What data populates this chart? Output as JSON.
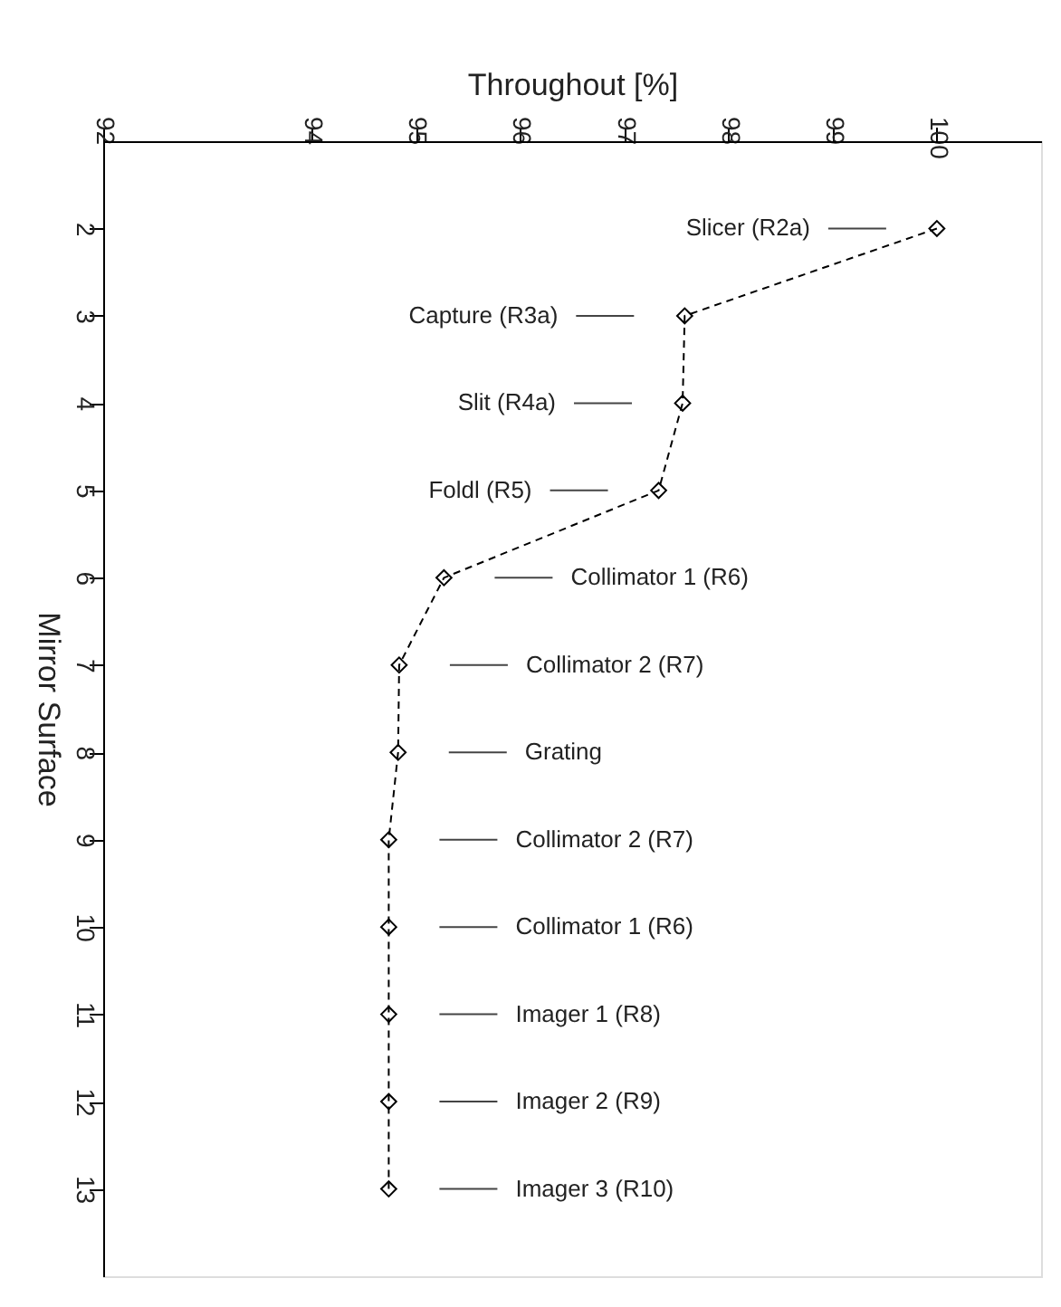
{
  "chart_data": {
    "type": "line",
    "orientation": "horizontal",
    "xlabel": "Throughout [%]",
    "ylabel": "Mirror Surface",
    "x": [
      2,
      3,
      4,
      5,
      6,
      7,
      8,
      9,
      10,
      11,
      12,
      13
    ],
    "series": [
      {
        "color": "#000000",
        "values": [
          100.0,
          97.58,
          97.56,
          97.33,
          95.27,
          94.84,
          94.83,
          94.74,
          94.74,
          94.74,
          94.74,
          94.74
        ]
      }
    ],
    "xlim": [
      92,
      101
    ],
    "xticks": [
      92,
      94,
      95,
      96,
      97,
      98,
      99,
      100
    ],
    "ylim": [
      14,
      1
    ],
    "yticks": [
      2,
      3,
      4,
      5,
      6,
      7,
      8,
      9,
      10,
      11,
      12,
      13
    ],
    "annotations": [
      "Slicer (R2a)",
      "Capture (R3a)",
      "Slit  (R4a)",
      "Foldl (R5)",
      "Collimator 1 (R6)",
      "Collimator 2 (R7)",
      "Grating",
      "Collimator 2 (R7)",
      "Collimator 1 (R6)",
      "Imager 1 (R8)",
      "Imager 2 (R9)",
      "Imager 3 (R10)"
    ],
    "grid": false,
    "marker": "diamond",
    "line_style": "dashed"
  }
}
